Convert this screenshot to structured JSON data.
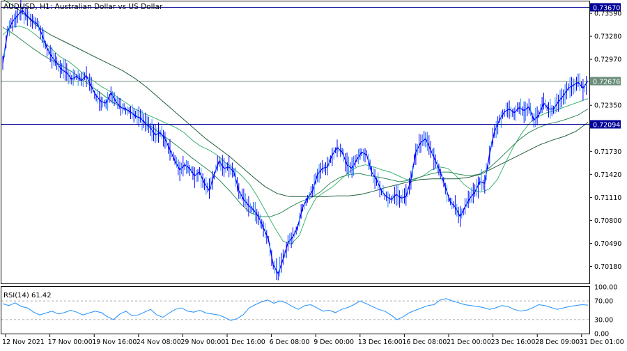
{
  "header": {
    "symbol": "AUDUSD",
    "timeframe": "H1",
    "description": "Australian Dollar vs US Dollar",
    "title": "AUDUSD, H1:  Australian Dollar vs US Dollar"
  },
  "colors": {
    "background": "#ffffff",
    "price_bars": "#0000ff",
    "price_bars_alt": "#1e90ff",
    "ma_fast": "#3cb371",
    "ma_mid": "#2e8b57",
    "ma_slow": "#1f5f3a",
    "level_line": "#000099",
    "level_badge": "#000099",
    "current_line": "#6b8e7b",
    "current_badge": "#6b8e7b",
    "frame": "#000000",
    "grid_dash": "#aaaaaa"
  },
  "chart_data": [
    {
      "type": "line",
      "title": "AUDUSD, H1:  Australian Dollar vs US Dollar",
      "x_ticks": [
        "12 Nov 2021",
        "17 Nov 00:00",
        "19 Nov 16:00",
        "24 Nov 08:00",
        "29 Nov 00:00",
        "1 Dec 16:00",
        "6 Dec 08:00",
        "9 Dec 00:00",
        "13 Dec 16:00",
        "16 Dec 08:00",
        "21 Dec 00:00",
        "23 Dec 16:00",
        "28 Dec 09:00",
        "31 Dec 01:00"
      ],
      "y_ticks": [
        "0.73590",
        "0.73280",
        "0.72970",
        "0.72350",
        "0.71730",
        "0.71420",
        "0.71110",
        "0.70800",
        "0.70490",
        "0.70180"
      ],
      "ylim": [
        0.6995,
        0.7375
      ],
      "levels": [
        {
          "label": "0.73670",
          "value": 0.7367
        },
        {
          "label": "0.72094",
          "value": 0.72094
        }
      ],
      "current_price": {
        "label": "0.72676",
        "value": 0.72676
      },
      "series": [
        {
          "kind": "price",
          "values": [
            0.7292,
            0.7335,
            0.7348,
            0.7356,
            0.7363,
            0.7355,
            0.7349,
            0.7345,
            0.733,
            0.7312,
            0.73,
            0.7292,
            0.7283,
            0.7279,
            0.727,
            0.7274,
            0.7268,
            0.7275,
            0.726,
            0.7248,
            0.724,
            0.7238,
            0.7252,
            0.724,
            0.7232,
            0.723,
            0.7226,
            0.722,
            0.7218,
            0.721,
            0.7205,
            0.7195,
            0.7198,
            0.719,
            0.7175,
            0.716,
            0.7148,
            0.7155,
            0.715,
            0.714,
            0.7145,
            0.713,
            0.712,
            0.7142,
            0.716,
            0.715,
            0.7152,
            0.7145,
            0.712,
            0.7108,
            0.71,
            0.7094,
            0.7085,
            0.707,
            0.7055,
            0.702,
            0.7008,
            0.7028,
            0.705,
            0.7058,
            0.7072,
            0.7098,
            0.711,
            0.712,
            0.7142,
            0.715,
            0.7152,
            0.7168,
            0.7178,
            0.7172,
            0.7155,
            0.715,
            0.7162,
            0.7172,
            0.7168,
            0.7145,
            0.7135,
            0.712,
            0.7112,
            0.7108,
            0.7115,
            0.711,
            0.7112,
            0.7135,
            0.7172,
            0.7185,
            0.719,
            0.7175,
            0.716,
            0.7145,
            0.7125,
            0.7105,
            0.7098,
            0.7085,
            0.7098,
            0.711,
            0.7118,
            0.7132,
            0.713,
            0.717,
            0.72,
            0.7215,
            0.7226,
            0.723,
            0.7225,
            0.7232,
            0.7228,
            0.7233,
            0.7215,
            0.7222,
            0.7238,
            0.723,
            0.723,
            0.724,
            0.7248,
            0.7258,
            0.7262,
            0.7266,
            0.7258,
            0.7268
          ]
        },
        {
          "kind": "ma-fast",
          "values": [
            0.733,
            0.734,
            0.7342,
            0.7338,
            0.733,
            0.732,
            0.731,
            0.73,
            0.7294,
            0.7285,
            0.7275,
            0.7268,
            0.726,
            0.7254,
            0.7245,
            0.7238,
            0.723,
            0.7225,
            0.722,
            0.7215,
            0.721,
            0.7205,
            0.7198,
            0.7188,
            0.718,
            0.7175,
            0.7168,
            0.7158,
            0.715,
            0.714,
            0.7128,
            0.711,
            0.709,
            0.707,
            0.7052,
            0.7048,
            0.706,
            0.709,
            0.711,
            0.7118,
            0.7125,
            0.7135,
            0.7145,
            0.7152,
            0.7155,
            0.7152,
            0.7148,
            0.7145,
            0.714,
            0.7135,
            0.7135,
            0.714,
            0.7148,
            0.7152,
            0.715,
            0.714,
            0.7128,
            0.712,
            0.7118,
            0.7122,
            0.7135,
            0.7158,
            0.718,
            0.7198,
            0.7212,
            0.722,
            0.7225,
            0.7228,
            0.7232,
            0.7236,
            0.724,
            0.7244
          ]
        },
        {
          "kind": "ma-mid",
          "values": [
            0.734,
            0.7332,
            0.7322,
            0.7312,
            0.7303,
            0.7295,
            0.7288,
            0.728,
            0.727,
            0.726,
            0.725,
            0.724,
            0.7232,
            0.7225,
            0.7216,
            0.7206,
            0.7196,
            0.7186,
            0.7176,
            0.7165,
            0.7155,
            0.7145,
            0.7132,
            0.7118,
            0.7102,
            0.709,
            0.7085,
            0.7085,
            0.709,
            0.7098,
            0.7105,
            0.711,
            0.7118,
            0.713,
            0.7138,
            0.7142,
            0.7143,
            0.714,
            0.7138,
            0.7135,
            0.7132,
            0.7134,
            0.7138,
            0.7142,
            0.7145,
            0.7145,
            0.7142,
            0.714,
            0.7142,
            0.715,
            0.7162,
            0.7175,
            0.7188,
            0.7198,
            0.7205,
            0.721,
            0.7213,
            0.7217,
            0.7222,
            0.723
          ]
        },
        {
          "kind": "ma-slow",
          "values": [
            0.7378,
            0.7368,
            0.7355,
            0.734,
            0.733,
            0.7322,
            0.7314,
            0.7306,
            0.7298,
            0.729,
            0.7282,
            0.7272,
            0.726,
            0.7246,
            0.7232,
            0.7218,
            0.7204,
            0.719,
            0.7178,
            0.7166,
            0.7152,
            0.7138,
            0.7125,
            0.7116,
            0.7112,
            0.7112,
            0.7112,
            0.7112,
            0.7113,
            0.7113,
            0.7115,
            0.7119,
            0.7124,
            0.7128,
            0.7132,
            0.7135,
            0.7136,
            0.7136,
            0.7136,
            0.7138,
            0.7142,
            0.715,
            0.7158,
            0.7166,
            0.7174,
            0.7182,
            0.7188,
            0.7193,
            0.72,
            0.7212
          ]
        }
      ]
    },
    {
      "type": "line",
      "title": "RSI(14) 61.42",
      "y_ticks": [
        "100.00",
        "70.00",
        "30.00",
        "0.00"
      ],
      "ylim": [
        0,
        100
      ],
      "levels": [
        70,
        30
      ],
      "series": [
        {
          "kind": "rsi",
          "values": [
            64,
            60,
            66,
            58,
            55,
            46,
            40,
            44,
            48,
            42,
            45,
            50,
            46,
            40,
            44,
            48,
            45,
            36,
            30,
            42,
            48,
            38,
            40,
            46,
            52,
            40,
            35,
            44,
            52,
            55,
            48,
            46,
            50,
            44,
            42,
            40,
            35,
            28,
            32,
            40,
            55,
            62,
            68,
            72,
            65,
            70,
            66,
            58,
            52,
            60,
            62,
            55,
            48,
            50,
            45,
            52,
            56,
            62,
            70,
            64,
            58,
            52,
            48,
            40,
            30,
            36,
            45,
            50,
            55,
            60,
            62,
            72,
            75,
            70,
            66,
            62,
            60,
            58,
            56,
            52,
            55,
            60,
            58,
            52,
            48,
            50,
            55,
            62,
            60,
            56,
            52,
            55,
            58,
            60,
            62,
            61
          ]
        }
      ]
    }
  ]
}
